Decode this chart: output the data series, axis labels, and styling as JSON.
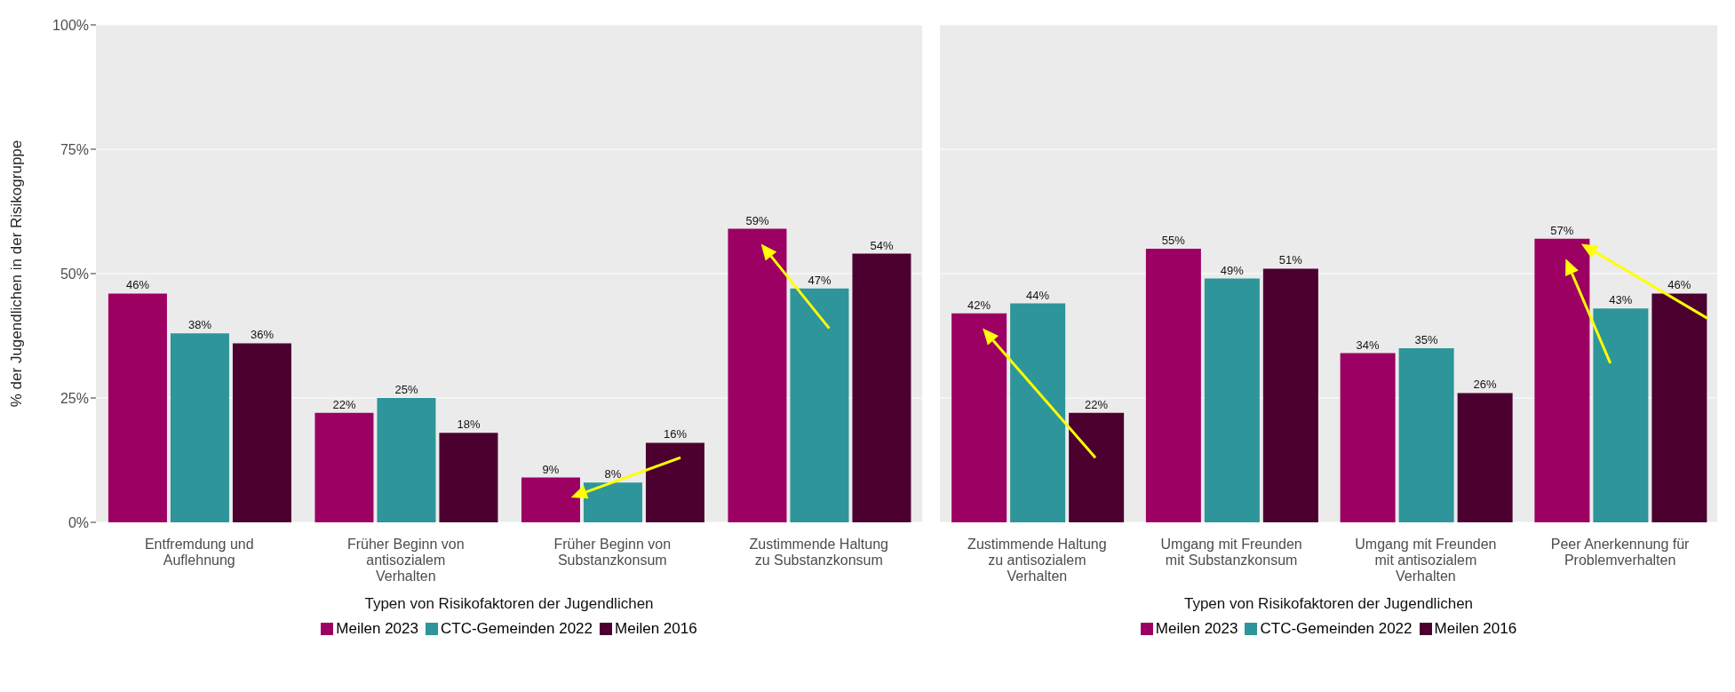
{
  "chart_data": [
    {
      "type": "bar",
      "xlabel": "Typen von Risikofaktoren der Jugendlichen",
      "ylabel": "% der Jugendlichen in der Risikogruppe",
      "categories": [
        "Entfremdung und Auflehnung",
        "Früher Beginn von antisozialem Verhalten",
        "Früher Beginn von Substanzkonsum",
        "Zustimmende Haltung zu Substanzkonsum"
      ],
      "series": [
        {
          "name": "Meilen 2023",
          "color": "#9b0062",
          "values": [
            46,
            22,
            9,
            59
          ],
          "value_labels": [
            "46%",
            "22%",
            "9%",
            "59%"
          ]
        },
        {
          "name": "CTC-Gemeinden 2022",
          "color": "#2e959a",
          "values": [
            38,
            25,
            8,
            47
          ],
          "value_labels": [
            "38%",
            "25%",
            "8%",
            "47%"
          ]
        },
        {
          "name": "Meilen 2016",
          "color": "#4b0030",
          "values": [
            36,
            18,
            16,
            54
          ],
          "value_labels": [
            "36%",
            "18%",
            "16%",
            "54%"
          ]
        }
      ],
      "ylim": [
        0,
        100
      ],
      "yticks": [
        {
          "value": 0,
          "label": "0%"
        },
        {
          "value": 25,
          "label": "25%"
        },
        {
          "value": 50,
          "label": "50%"
        },
        {
          "value": 75,
          "label": "75%"
        },
        {
          "value": 100,
          "label": "100%"
        }
      ],
      "grid": "y",
      "legend": "bottom"
    },
    {
      "type": "bar",
      "xlabel": "Typen von Risikofaktoren der Jugendlichen",
      "categories": [
        "Zustimmende Haltung zu antisozialem Verhalten",
        "Umgang mit Freunden mit Substanzkonsum",
        "Umgang mit Freunden mit antisozialem Verhalten",
        "Peer Anerkennung für Problemverhalten"
      ],
      "series": [
        {
          "name": "Meilen 2023",
          "color": "#9b0062",
          "values": [
            42,
            55,
            34,
            57
          ],
          "value_labels": [
            "42%",
            "55%",
            "34%",
            "57%"
          ]
        },
        {
          "name": "CTC-Gemeinden 2022",
          "color": "#2e959a",
          "values": [
            44,
            49,
            35,
            43
          ],
          "value_labels": [
            "44%",
            "49%",
            "35%",
            "43%"
          ]
        },
        {
          "name": "Meilen 2016",
          "color": "#4b0030",
          "values": [
            22,
            51,
            26,
            46
          ],
          "value_labels": [
            "22%",
            "51%",
            "26%",
            "46%"
          ]
        }
      ],
      "ylim": [
        0,
        100
      ],
      "yticks": [
        0,
        25,
        50,
        75,
        100
      ],
      "grid": "y",
      "legend": "bottom",
      "tick_labels": "x"
    }
  ]
}
